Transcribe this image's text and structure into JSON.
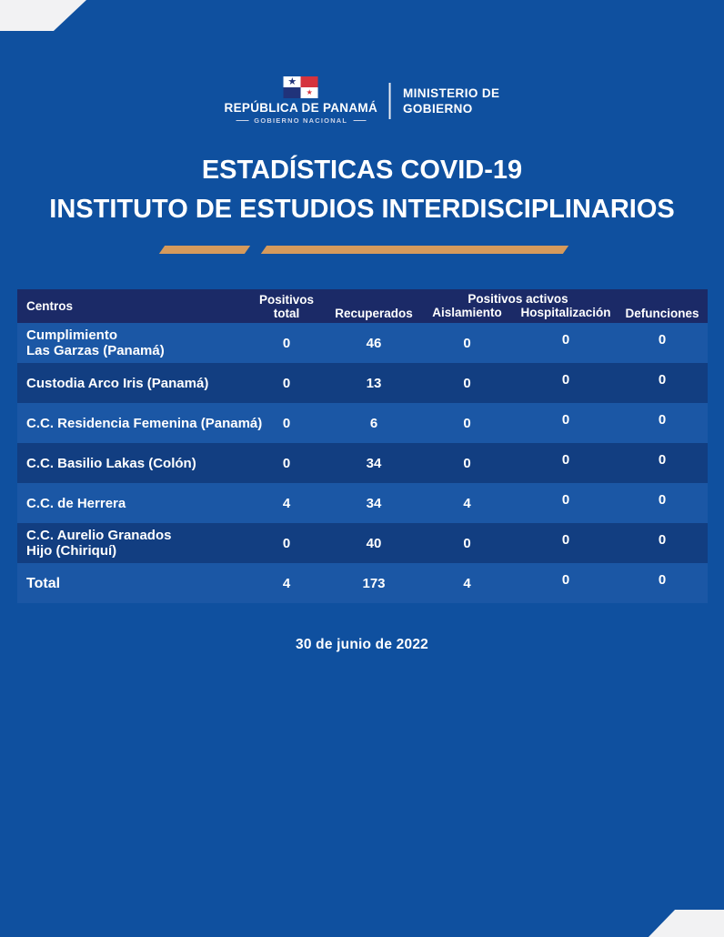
{
  "brand": {
    "flag": "panama-flag",
    "republica": "REPÚBLICA DE PANAMÁ",
    "gobierno_nacional": "GOBIERNO NACIONAL",
    "ministerio_line1": "MINISTERIO DE",
    "ministerio_line2": "GOBIERNO"
  },
  "title": {
    "line1": "ESTADÍSTICAS COVID-19",
    "line2": "INSTITUTO DE ESTUDIOS INTERDISCIPLINARIOS"
  },
  "table": {
    "headers": {
      "centros": "Centros",
      "positivos_total": "Positivos\ntotal",
      "recuperados": "Recuperados",
      "positivos_activos": "Positivos activos",
      "aislamiento": "Aislamiento",
      "hospitalizacion": "Hospitalización",
      "defunciones": "Defunciones"
    },
    "rows": [
      {
        "centro": "Cumplimiento\nLas Garzas (Panamá)",
        "positivos_total": "0",
        "recuperados": "46",
        "aislamiento": "0",
        "hospitalizacion": "0",
        "defunciones": "0"
      },
      {
        "centro": "Custodia Arco Iris (Panamá)",
        "positivos_total": "0",
        "recuperados": "13",
        "aislamiento": "0",
        "hospitalizacion": "0",
        "defunciones": "0"
      },
      {
        "centro": "C.C. Residencia Femenina (Panamá)",
        "positivos_total": "0",
        "recuperados": "6",
        "aislamiento": "0",
        "hospitalizacion": "0",
        "defunciones": "0"
      },
      {
        "centro": "C.C. Basilio Lakas (Colón)",
        "positivos_total": "0",
        "recuperados": "34",
        "aislamiento": "0",
        "hospitalizacion": "0",
        "defunciones": "0"
      },
      {
        "centro": "C.C. de Herrera",
        "positivos_total": "4",
        "recuperados": "34",
        "aislamiento": "4",
        "hospitalizacion": "0",
        "defunciones": "0"
      },
      {
        "centro": "C.C. Aurelio Granados\nHijo (Chiriquí)",
        "positivos_total": "0",
        "recuperados": "40",
        "aislamiento": "0",
        "hospitalizacion": "0",
        "defunciones": "0"
      }
    ],
    "total_row": {
      "centro": "Total",
      "positivos_total": "4",
      "recuperados": "173",
      "aislamiento": "4",
      "hospitalizacion": "0",
      "defunciones": "0"
    }
  },
  "footer": {
    "date": "30 de junio de 2022"
  },
  "colors": {
    "background": "#0f509f",
    "table_header": "#1b2a67",
    "row_light": "#1b57a5",
    "row_dark": "#123e81",
    "accent": "#d59a5c",
    "text": "#ffffff"
  }
}
